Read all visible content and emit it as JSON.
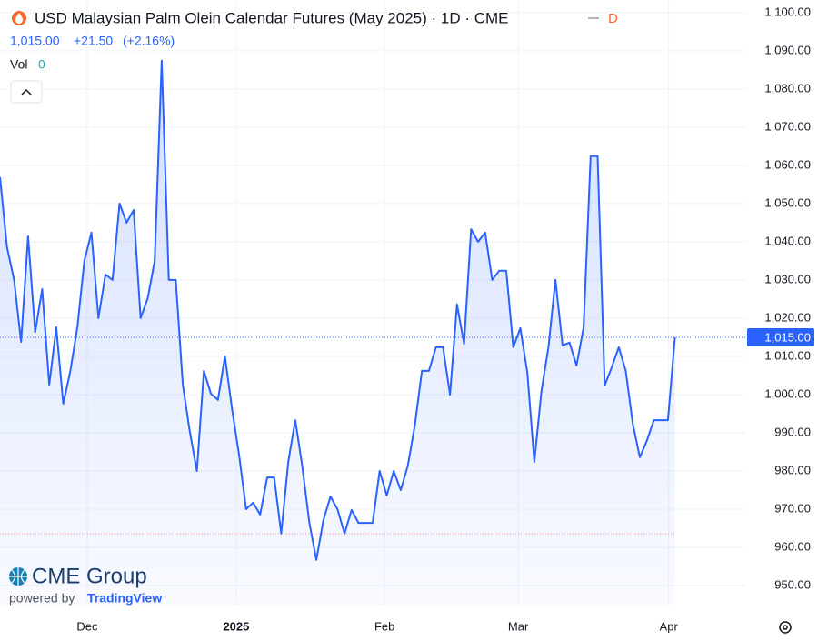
{
  "chart_data": {
    "type": "area",
    "title": "USD Malaysian Palm Olein Calendar Futures (May 2025) · 1D · CME",
    "interval_badge": "D",
    "quote": {
      "price": "1,015.00",
      "change": "+21.50",
      "change_pct": "(+2.16%)"
    },
    "volume": {
      "label": "Vol",
      "value": "0"
    },
    "logo": {
      "brand": "CME Group",
      "powered": "powered by",
      "provider": "TradingView"
    },
    "color": "#2962ff",
    "x": [
      0,
      1,
      2,
      3,
      4,
      5,
      6,
      7,
      8,
      9,
      10,
      11,
      12,
      13,
      14,
      15,
      16,
      17,
      18,
      19,
      20,
      21,
      22,
      23,
      24,
      25,
      26,
      27,
      28,
      29,
      30,
      31,
      32,
      33,
      34,
      35,
      36,
      37,
      38,
      39,
      40,
      41,
      42,
      43,
      44,
      45,
      46,
      47,
      48,
      49,
      50,
      51,
      52,
      53,
      54,
      55,
      56,
      57,
      58,
      59,
      60,
      61,
      62,
      63,
      64,
      65,
      66,
      67,
      68,
      69,
      70,
      71,
      72,
      73,
      74,
      75,
      76,
      77,
      78,
      79,
      80,
      81,
      82,
      83,
      84,
      85,
      86,
      87,
      88,
      89,
      90,
      91,
      92,
      93,
      94,
      95,
      96
    ],
    "values": [
      1056.9,
      1038.6,
      1030,
      1013.8,
      1041.4,
      1016.4,
      1027.6,
      1002.6,
      1017.6,
      997.6,
      1006.2,
      1017.6,
      1035,
      1042.4,
      1020,
      1031.4,
      1030,
      1050,
      1045,
      1048.3,
      1020,
      1025.2,
      1035,
      1087.4,
      1030,
      1030,
      1002.6,
      990.2,
      980,
      1006.2,
      1000.2,
      998.6,
      1010,
      996.2,
      984.3,
      970,
      971.7,
      968.6,
      978.3,
      978.3,
      963.6,
      982.4,
      993.3,
      981.2,
      966.4,
      956.7,
      967.1,
      973.3,
      970,
      963.6,
      969.8,
      966.4,
      966.4,
      966.4,
      980,
      973.6,
      980,
      975,
      981.4,
      991.9,
      1006.2,
      1006.2,
      1012.4,
      1012.4,
      1000,
      1023.6,
      1013.3,
      1043.3,
      1040,
      1042.4,
      1030,
      1032.4,
      1032.4,
      1012.4,
      1017.4,
      1005.7,
      982.4,
      1000.9,
      1012.4,
      1030,
      1012.9,
      1013.6,
      1007.6,
      1017.6,
      1062.4,
      1062.4,
      1002.4,
      1007.1,
      1012.4,
      1006.2,
      992.4,
      983.6,
      987.9,
      993.3,
      993.3,
      993.3,
      1015
    ],
    "price_tag": {
      "value": 1015,
      "label": "1,015.00"
    },
    "baseline": 963.6,
    "xlim": [
      0,
      106
    ],
    "xticks": [
      {
        "value": 12.4,
        "label": "Dec"
      },
      {
        "value": 33.6,
        "label": "2025"
      },
      {
        "value": 54.7,
        "label": "Feb"
      },
      {
        "value": 73.7,
        "label": "Mar"
      },
      {
        "value": 95.1,
        "label": "Apr"
      }
    ],
    "ylim": [
      945,
      1103.3
    ],
    "yticks": [
      {
        "value": 950,
        "label": "950.00"
      },
      {
        "value": 960,
        "label": "960.00"
      },
      {
        "value": 970,
        "label": "970.00"
      },
      {
        "value": 980,
        "label": "980.00"
      },
      {
        "value": 990,
        "label": "990.00"
      },
      {
        "value": 1000,
        "label": "1,000.00"
      },
      {
        "value": 1010,
        "label": "1,010.00"
      },
      {
        "value": 1020,
        "label": "1,020.00"
      },
      {
        "value": 1030,
        "label": "1,030.00"
      },
      {
        "value": 1040,
        "label": "1,040.00"
      },
      {
        "value": 1050,
        "label": "1,050.00"
      },
      {
        "value": 1060,
        "label": "1,060.00"
      },
      {
        "value": 1070,
        "label": "1,070.00"
      },
      {
        "value": 1080,
        "label": "1,080.00"
      },
      {
        "value": 1090,
        "label": "1,090.00"
      },
      {
        "value": 1100,
        "label": "1,100.00"
      }
    ],
    "grid": true
  }
}
